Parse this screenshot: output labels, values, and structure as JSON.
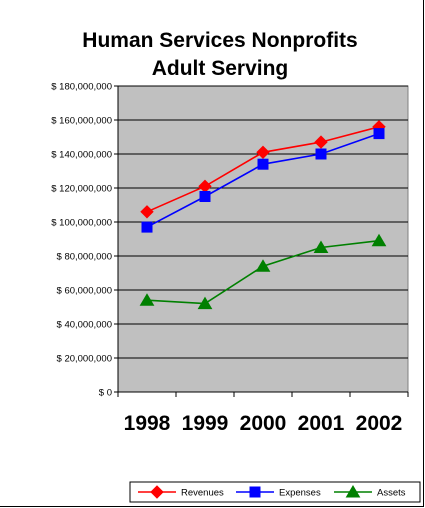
{
  "chart_data": {
    "type": "line",
    "title": "Human Services Nonprofits",
    "subtitle": "Adult Serving",
    "categories": [
      "1998",
      "1999",
      "2000",
      "2001",
      "2002"
    ],
    "ylim": [
      0,
      180000000
    ],
    "yticks": [
      {
        "value": 180000000,
        "label": "$ 180,000,000"
      },
      {
        "value": 160000000,
        "label": "$ 160,000,000"
      },
      {
        "value": 140000000,
        "label": "$ 140,000,000"
      },
      {
        "value": 120000000,
        "label": "$ 120,000,000"
      },
      {
        "value": 100000000,
        "label": "$ 100,000,000"
      },
      {
        "value": 80000000,
        "label": "$ 80,000,000"
      },
      {
        "value": 60000000,
        "label": "$ 60,000,000"
      },
      {
        "value": 40000000,
        "label": "$ 40,000,000"
      },
      {
        "value": 20000000,
        "label": "$ 20,000,000"
      },
      {
        "value": 0,
        "label": "$ 0"
      }
    ],
    "grid": true,
    "plot_background": "#c0c0c0",
    "legend_position": "bottom",
    "series": [
      {
        "name": "Revenues",
        "color": "#ff0000",
        "marker": "diamond",
        "values": [
          106000000,
          121000000,
          141000000,
          147000000,
          156000000
        ]
      },
      {
        "name": "Expenses",
        "color": "#0000ff",
        "marker": "square",
        "values": [
          97000000,
          115000000,
          134000000,
          140000000,
          152000000
        ]
      },
      {
        "name": "Assets",
        "color": "#008000",
        "marker": "triangle",
        "values": [
          54000000,
          52000000,
          74000000,
          85000000,
          89000000
        ]
      }
    ]
  }
}
